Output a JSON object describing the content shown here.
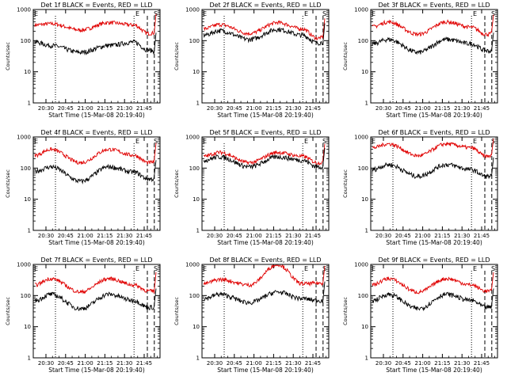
{
  "colors": {
    "events": "#000000",
    "lld": "#e00000",
    "axes": "#000000"
  },
  "chart_data": [
    {
      "type": "line",
      "title": "Det 1f BLACK = Events, RED = LLD",
      "events_level": [
        90,
        70,
        42,
        70,
        90,
        50,
        45
      ],
      "lld_level": [
        320,
        350,
        220,
        380,
        320,
        170,
        180
      ],
      "markers": {
        "left": "E",
        "mid": "E",
        "right": "S"
      }
    },
    {
      "type": "line",
      "title": "Det 2f BLACK = Events, RED = LLD",
      "events_level": [
        150,
        210,
        110,
        230,
        150,
        85,
        90
      ],
      "lld_level": [
        240,
        330,
        170,
        380,
        240,
        120,
        130
      ],
      "markers": {
        "left": "E",
        "mid": "E",
        "right": "S"
      }
    },
    {
      "type": "line",
      "title": "Det 3f BLACK = Events, RED = LLD",
      "events_level": [
        80,
        110,
        42,
        110,
        80,
        48,
        45
      ],
      "lld_level": [
        280,
        400,
        160,
        400,
        270,
        160,
        170
      ],
      "markers": {
        "left": "E",
        "mid": "E",
        "right": "S"
      }
    },
    {
      "type": "line",
      "title": "Det 4f BLACK = Events, RED = LLD",
      "events_level": [
        80,
        110,
        38,
        110,
        75,
        45,
        45
      ],
      "lld_level": [
        260,
        400,
        150,
        400,
        260,
        150,
        160
      ],
      "markers": {
        "left": "E",
        "mid": "E",
        "right": "S"
      }
    },
    {
      "type": "line",
      "title": "Det 5f BLACK = Events, RED = LLD",
      "events_level": [
        180,
        230,
        110,
        230,
        180,
        110,
        110
      ],
      "lld_level": [
        240,
        320,
        150,
        320,
        240,
        150,
        150
      ],
      "markers": {
        "left": "E",
        "mid": "E",
        "right": "S"
      }
    },
    {
      "type": "line",
      "title": "Det 6f BLACK = Events, RED = LLD",
      "events_level": [
        90,
        130,
        55,
        130,
        90,
        55,
        55
      ],
      "lld_level": [
        450,
        600,
        250,
        600,
        450,
        240,
        250
      ],
      "markers": {
        "left": "E",
        "mid": "E",
        "right": "S"
      }
    },
    {
      "type": "line",
      "title": "Det 7f BLACK = Events, RED = LLD",
      "events_level": [
        70,
        110,
        38,
        110,
        70,
        42,
        42
      ],
      "lld_level": [
        220,
        350,
        130,
        350,
        220,
        140,
        140
      ],
      "markers": {
        "left": "E",
        "mid": "E",
        "right": "S"
      }
    },
    {
      "type": "line",
      "title": "Det 8f BLACK = Events, RED = LLD",
      "events_level": [
        80,
        110,
        60,
        130,
        80,
        70,
        70
      ],
      "lld_level": [
        240,
        330,
        220,
        1000,
        240,
        250,
        250
      ],
      "markers": {
        "left": "E",
        "mid": "E",
        "right": "S"
      }
    },
    {
      "type": "line",
      "title": "Det 9f BLACK = Events, RED = LLD",
      "events_level": [
        70,
        110,
        38,
        110,
        70,
        42,
        42
      ],
      "lld_level": [
        220,
        350,
        130,
        350,
        220,
        140,
        140
      ],
      "markers": {
        "left": "E",
        "mid": "E",
        "right": "S"
      }
    }
  ],
  "shared": {
    "ylabel": "Counts/sec",
    "xlabel": "Start Time (15-Mar-08 20:19:40)",
    "xticks": [
      "20:30",
      "20:45",
      "21:00",
      "21:15",
      "21:30",
      "21:45"
    ],
    "yticks": [
      "1",
      "10",
      "100",
      "1000"
    ],
    "ylim": [
      1,
      1000
    ]
  }
}
